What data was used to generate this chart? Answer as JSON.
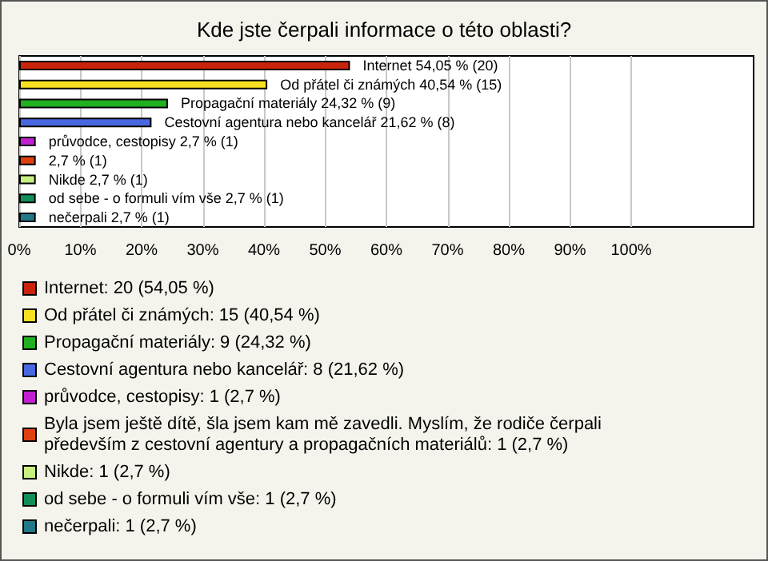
{
  "chart_data": {
    "type": "bar",
    "orientation": "horizontal",
    "stacked": true,
    "title": "Kde jste čerpali informace o této oblasti?",
    "categories": [
      null,
      null,
      null,
      null,
      null,
      null,
      null,
      null,
      null
    ],
    "series": [
      {
        "name": "Internet: 20 (54,05 %)",
        "color": "#c8240c",
        "values": [
          54.05,
          null,
          null,
          null,
          null,
          null,
          null,
          null,
          null
        ],
        "value_labels": [
          "Internet 54,05 % (20)",
          null,
          null,
          null,
          null,
          null,
          null,
          null,
          null
        ]
      },
      {
        "name": "Od přátel či známých: 15 (40,54 %)",
        "color": "#f8e020",
        "values": [
          null,
          40.54,
          null,
          null,
          null,
          null,
          null,
          null,
          null
        ],
        "value_labels": [
          null,
          "Od přátel či známých 40,54 % (15)",
          null,
          null,
          null,
          null,
          null,
          null,
          null
        ]
      },
      {
        "name": "Propagační materiály: 9 (24,32 %)",
        "color": "#20b020",
        "values": [
          null,
          null,
          24.32,
          null,
          null,
          null,
          null,
          null,
          null
        ],
        "value_labels": [
          null,
          null,
          "Propagační materiály 24,32 % (9)",
          null,
          null,
          null,
          null,
          null,
          null
        ]
      },
      {
        "name": "Cestovní agentura nebo kancelář: 8 (21,62 %)",
        "color": "#4868e0",
        "values": [
          null,
          null,
          null,
          21.62,
          null,
          null,
          null,
          null,
          null
        ],
        "value_labels": [
          null,
          null,
          null,
          "Cestovní agentura nebo kancelář 21,62 % (8)",
          null,
          null,
          null,
          null,
          null
        ]
      },
      {
        "name": "průvodce, cestopisy: 1 (2,7 %)",
        "color": "#c020d0",
        "values": [
          null,
          null,
          null,
          null,
          2.7,
          null,
          null,
          null,
          null
        ],
        "value_labels": [
          null,
          null,
          null,
          null,
          "průvodce, cestopisy 2,7 % (1)",
          null,
          null,
          null,
          null
        ]
      },
      {
        "name": "Byla jsem ještě dítě, šla jsem kam mě zavedli. Myslím, že rodiče čerpali především z cestovní agentury a propagačních materiálů: 1 (2,7 %)",
        "color": "#e04010",
        "values": [
          null,
          null,
          null,
          null,
          null,
          2.7,
          null,
          null,
          null
        ],
        "value_labels": [
          null,
          null,
          null,
          null,
          null,
          "2,7 % (1)",
          null,
          null,
          null
        ]
      },
      {
        "name": "Nikde: 1 (2,7 %)",
        "color": "#c8f080",
        "values": [
          null,
          null,
          null,
          null,
          null,
          null,
          2.7,
          null,
          null
        ],
        "value_labels": [
          null,
          null,
          null,
          null,
          null,
          null,
          "Nikde 2,7 % (1)",
          null,
          null
        ]
      },
      {
        "name": "od sebe - o formuli vím vše: 1 (2,7 %)",
        "color": "#109058",
        "values": [
          null,
          null,
          null,
          null,
          null,
          null,
          null,
          2.7,
          null
        ],
        "value_labels": [
          null,
          null,
          null,
          null,
          null,
          null,
          null,
          "od sebe - o formuli vím vše 2,7 % (1)",
          null
        ]
      },
      {
        "name": "nečerpali: 1 (2,7 %)",
        "color": "#207888",
        "values": [
          null,
          null,
          null,
          null,
          null,
          null,
          null,
          null,
          2.7
        ],
        "value_labels": [
          null,
          null,
          null,
          null,
          null,
          null,
          null,
          null,
          "nečerpali 2,7 % (1)"
        ]
      }
    ],
    "xlim": [
      0,
      120
    ],
    "xticks": [
      {
        "value": 0,
        "label": "0%"
      },
      {
        "value": 10,
        "label": "10%"
      },
      {
        "value": 20,
        "label": "20%"
      },
      {
        "value": 30,
        "label": "30%"
      },
      {
        "value": 40,
        "label": "40%"
      },
      {
        "value": 50,
        "label": "50%"
      },
      {
        "value": 60,
        "label": "60%"
      },
      {
        "value": 70,
        "label": "70%"
      },
      {
        "value": 80,
        "label": "80%"
      },
      {
        "value": 90,
        "label": "90%"
      },
      {
        "value": 100,
        "label": "100%"
      }
    ],
    "grid": "x",
    "legend": "bottom"
  }
}
